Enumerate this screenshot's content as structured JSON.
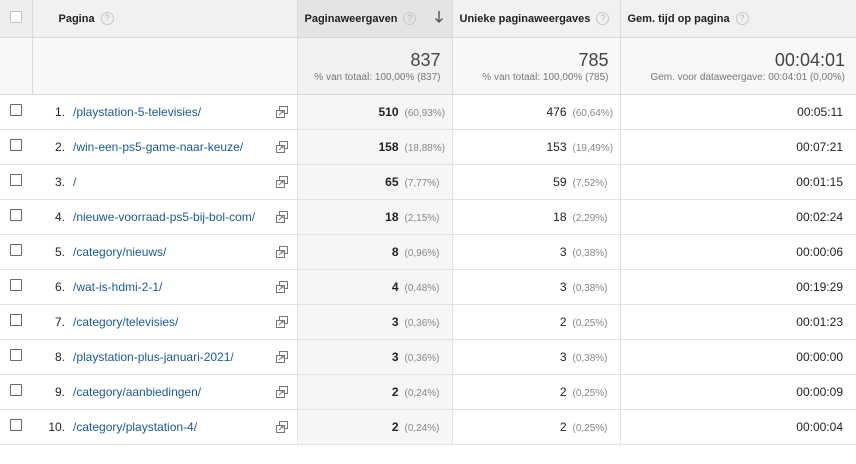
{
  "header": {
    "page": "Pagina",
    "pageviews": "Paginaweergaven",
    "unique_pageviews": "Unieke paginaweergaves",
    "avg_time": "Gem. tijd op pagina",
    "help_glyph": "?"
  },
  "totals": {
    "pageviews": "837",
    "pageviews_sub": "% van totaal: 100,00% (837)",
    "unique_pageviews": "785",
    "unique_pageviews_sub": "% van totaal: 100,00% (785)",
    "avg_time": "00:04:01",
    "avg_time_sub": "Gem. voor dataweergave: 00:04:01 (0,00%)"
  },
  "rows": [
    {
      "index": "1.",
      "page": "/playstation-5-televisies/",
      "pageviews": "510",
      "pageviews_pct": "(60,93%)",
      "unique": "476",
      "unique_pct": "(60,64%)",
      "time": "00:05:11"
    },
    {
      "index": "2.",
      "page": "/win-een-ps5-game-naar-keuze/",
      "pageviews": "158",
      "pageviews_pct": "(18,88%)",
      "unique": "153",
      "unique_pct": "(19,49%)",
      "time": "00:07:21"
    },
    {
      "index": "3.",
      "page": "/",
      "pageviews": "65",
      "pageviews_pct": "(7,77%)",
      "unique": "59",
      "unique_pct": "(7,52%)",
      "time": "00:01:15"
    },
    {
      "index": "4.",
      "page": "/nieuwe-voorraad-ps5-bij-bol-com/",
      "pageviews": "18",
      "pageviews_pct": "(2,15%)",
      "unique": "18",
      "unique_pct": "(2,29%)",
      "time": "00:02:24"
    },
    {
      "index": "5.",
      "page": "/category/nieuws/",
      "pageviews": "8",
      "pageviews_pct": "(0,96%)",
      "unique": "3",
      "unique_pct": "(0,38%)",
      "time": "00:00:06"
    },
    {
      "index": "6.",
      "page": "/wat-is-hdmi-2-1/",
      "pageviews": "4",
      "pageviews_pct": "(0,48%)",
      "unique": "3",
      "unique_pct": "(0,38%)",
      "time": "00:19:29"
    },
    {
      "index": "7.",
      "page": "/category/televisies/",
      "pageviews": "3",
      "pageviews_pct": "(0,36%)",
      "unique": "2",
      "unique_pct": "(0,25%)",
      "time": "00:01:23"
    },
    {
      "index": "8.",
      "page": "/playstation-plus-januari-2021/",
      "pageviews": "3",
      "pageviews_pct": "(0,36%)",
      "unique": "3",
      "unique_pct": "(0,38%)",
      "time": "00:00:00"
    },
    {
      "index": "9.",
      "page": "/category/aanbiedingen/",
      "pageviews": "2",
      "pageviews_pct": "(0,24%)",
      "unique": "2",
      "unique_pct": "(0,25%)",
      "time": "00:00:09"
    },
    {
      "index": "10.",
      "page": "/category/playstation-4/",
      "pageviews": "2",
      "pageviews_pct": "(0,24%)",
      "unique": "2",
      "unique_pct": "(0,25%)",
      "time": "00:00:04"
    }
  ],
  "colors": {
    "link": "#1a5a96",
    "header_bg": "#f1f1f1",
    "sorted_column_bg": "#e4e4e4"
  },
  "icons": {
    "help": "help-circle-icon",
    "sort": "sort-descending-arrow-icon",
    "popout": "open-in-new-window-icon"
  }
}
